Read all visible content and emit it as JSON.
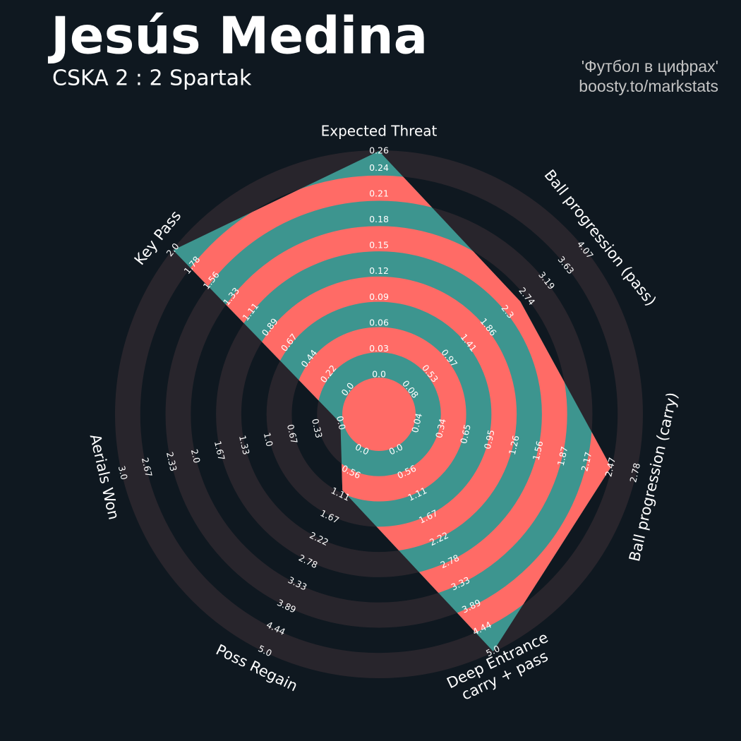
{
  "chart_data": {
    "type": "radar",
    "title": "Jesús Medina",
    "subtitle": "CSKA 2 : 2 Spartak",
    "credits": [
      "'Футбол в цифрах'",
      "boosty.to/markstats"
    ],
    "background": "#0f1820",
    "ring_color": "#28252c",
    "fill_color": "#3d958f",
    "ring_fill_color": "#ff6b66",
    "params": [
      {
        "label_lines": [
          "Expected Threat"
        ],
        "value": 0.26,
        "ticks": [
          {
            "value": 0,
            "label": "0.0"
          },
          0.03,
          0.06,
          0.09,
          0.12,
          0.15,
          0.18,
          0.21,
          0.24,
          0.26
        ]
      },
      {
        "label_lines": [
          "Ball progression (pass)"
        ],
        "value": 2.6,
        "ticks": [
          0.08,
          0.53,
          0.97,
          1.41,
          1.86,
          2.3,
          2.74,
          3.19,
          3.63,
          4.07
        ]
      },
      {
        "label_lines": [
          "Ball progression (carry)"
        ],
        "value": 2.47,
        "ticks": [
          0.04,
          0.34,
          0.65,
          0.95,
          1.26,
          1.56,
          1.87,
          2.17,
          2.47,
          2.78
        ]
      },
      {
        "label_lines": [
          "Deep Entrance",
          "carry + pass"
        ],
        "value": 5,
        "ticks": [
          {
            "value": 0,
            "label": "0.0"
          },
          0.56,
          1.11,
          1.67,
          2.22,
          2.78,
          3.33,
          3.89,
          4.44,
          {
            "value": 5,
            "label": "5.0"
          }
        ]
      },
      {
        "label_lines": [
          "Poss Regain"
        ],
        "value": 1,
        "ticks": [
          {
            "value": 0,
            "label": "0.0"
          },
          0.56,
          1.11,
          1.67,
          2.22,
          2.78,
          3.33,
          3.89,
          4.44,
          {
            "value": 5,
            "label": "5.0"
          }
        ]
      },
      {
        "label_lines": [
          "Aerials Won"
        ],
        "value": 0,
        "ticks": [
          {
            "value": 0,
            "label": "0.0"
          },
          0.33,
          0.67,
          {
            "value": 1,
            "label": "1.0"
          },
          1.33,
          1.67,
          {
            "value": 2,
            "label": "2.0"
          },
          2.33,
          2.67,
          {
            "value": 3,
            "label": "3.0"
          }
        ]
      },
      {
        "label_lines": [
          "Key Pass"
        ],
        "value": 2,
        "ticks": [
          {
            "value": 0,
            "label": "0.0"
          },
          0.22,
          0.44,
          0.67,
          0.89,
          1.11,
          1.33,
          1.56,
          1.78,
          {
            "value": 2,
            "label": "2.0"
          }
        ]
      }
    ]
  }
}
